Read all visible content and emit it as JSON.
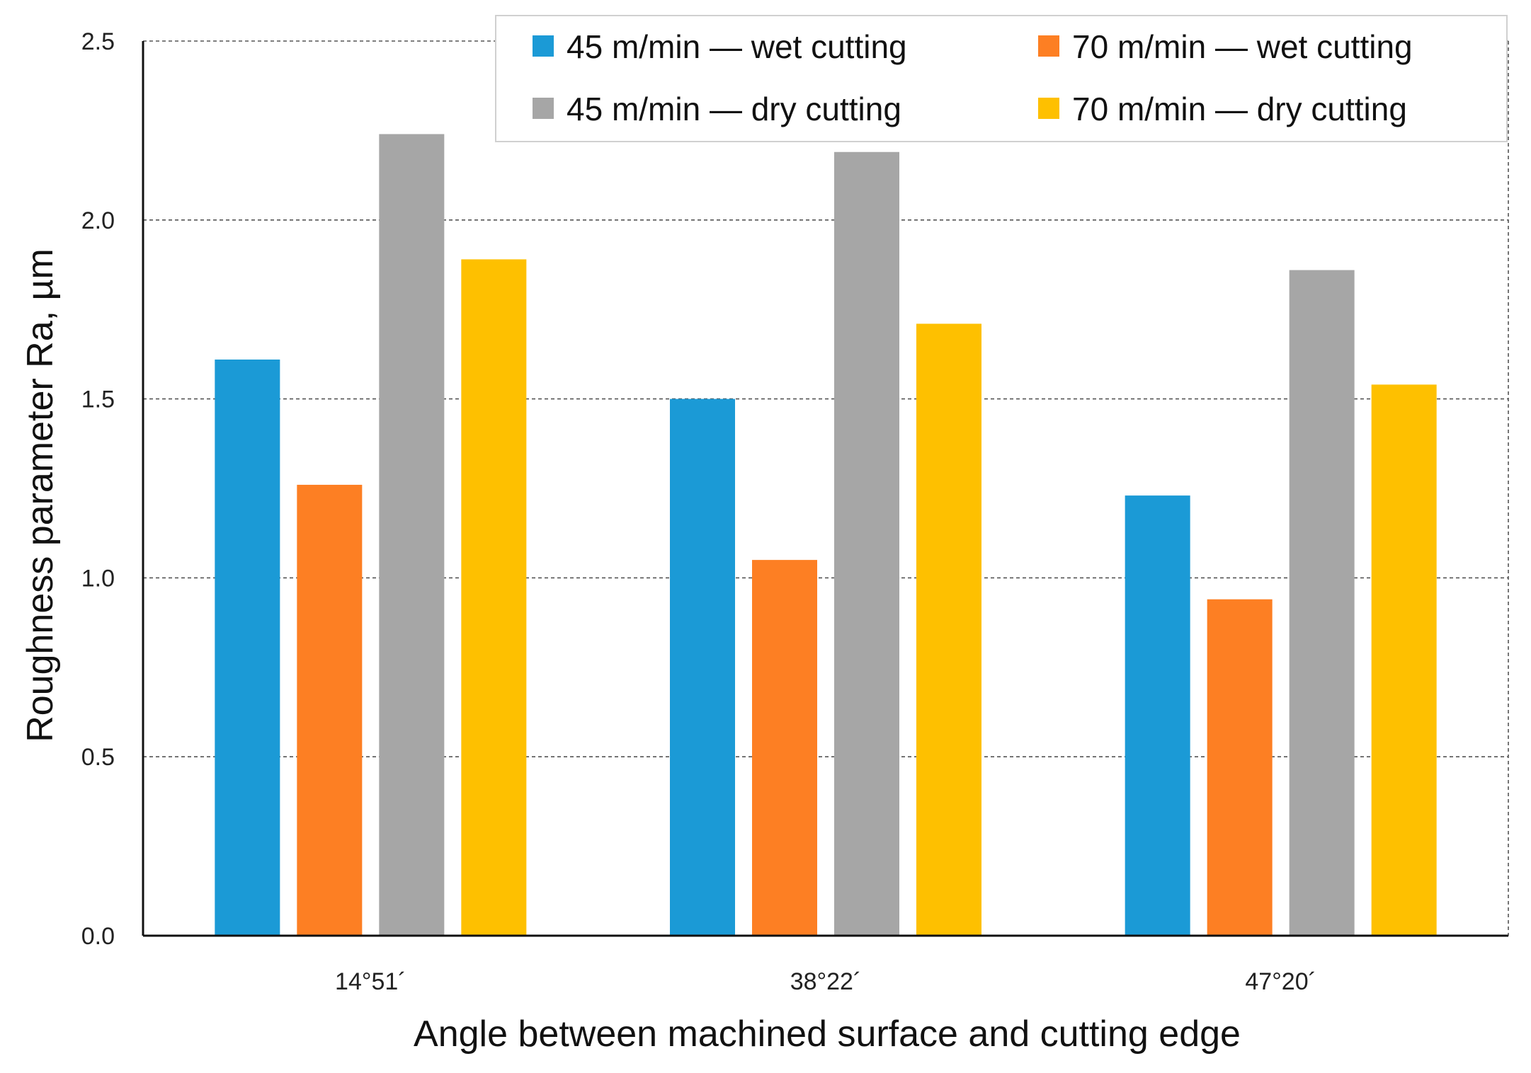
{
  "chart_data": {
    "type": "bar",
    "title": "",
    "xlabel": "Angle between machined surface and cutting edge",
    "ylabel": "Roughness parameter Ra, µm",
    "categories": [
      "14°51´",
      "38°22´",
      "47°20´"
    ],
    "ylim": [
      0,
      2.5
    ],
    "yticks": [
      0.0,
      0.5,
      1.0,
      1.5,
      2.0,
      2.5
    ],
    "ytick_labels": [
      "0.0",
      "0.5",
      "1.0",
      "1.5",
      "2.0",
      "2.5"
    ],
    "grid": true,
    "legend_position": "top-right",
    "series": [
      {
        "name": "45 m/min — wet cutting",
        "color": "#1B9AD6",
        "values": [
          1.61,
          1.5,
          1.23
        ]
      },
      {
        "name": "70 m/min — wet cutting",
        "color": "#FD7F23",
        "values": [
          1.26,
          1.05,
          0.94
        ]
      },
      {
        "name": "45 m/min — dry cutting",
        "color": "#A6A6A6",
        "values": [
          2.24,
          2.19,
          1.86
        ]
      },
      {
        "name": "70 m/min — dry cutting",
        "color": "#FEC000",
        "values": [
          1.89,
          1.71,
          1.54
        ]
      }
    ]
  }
}
